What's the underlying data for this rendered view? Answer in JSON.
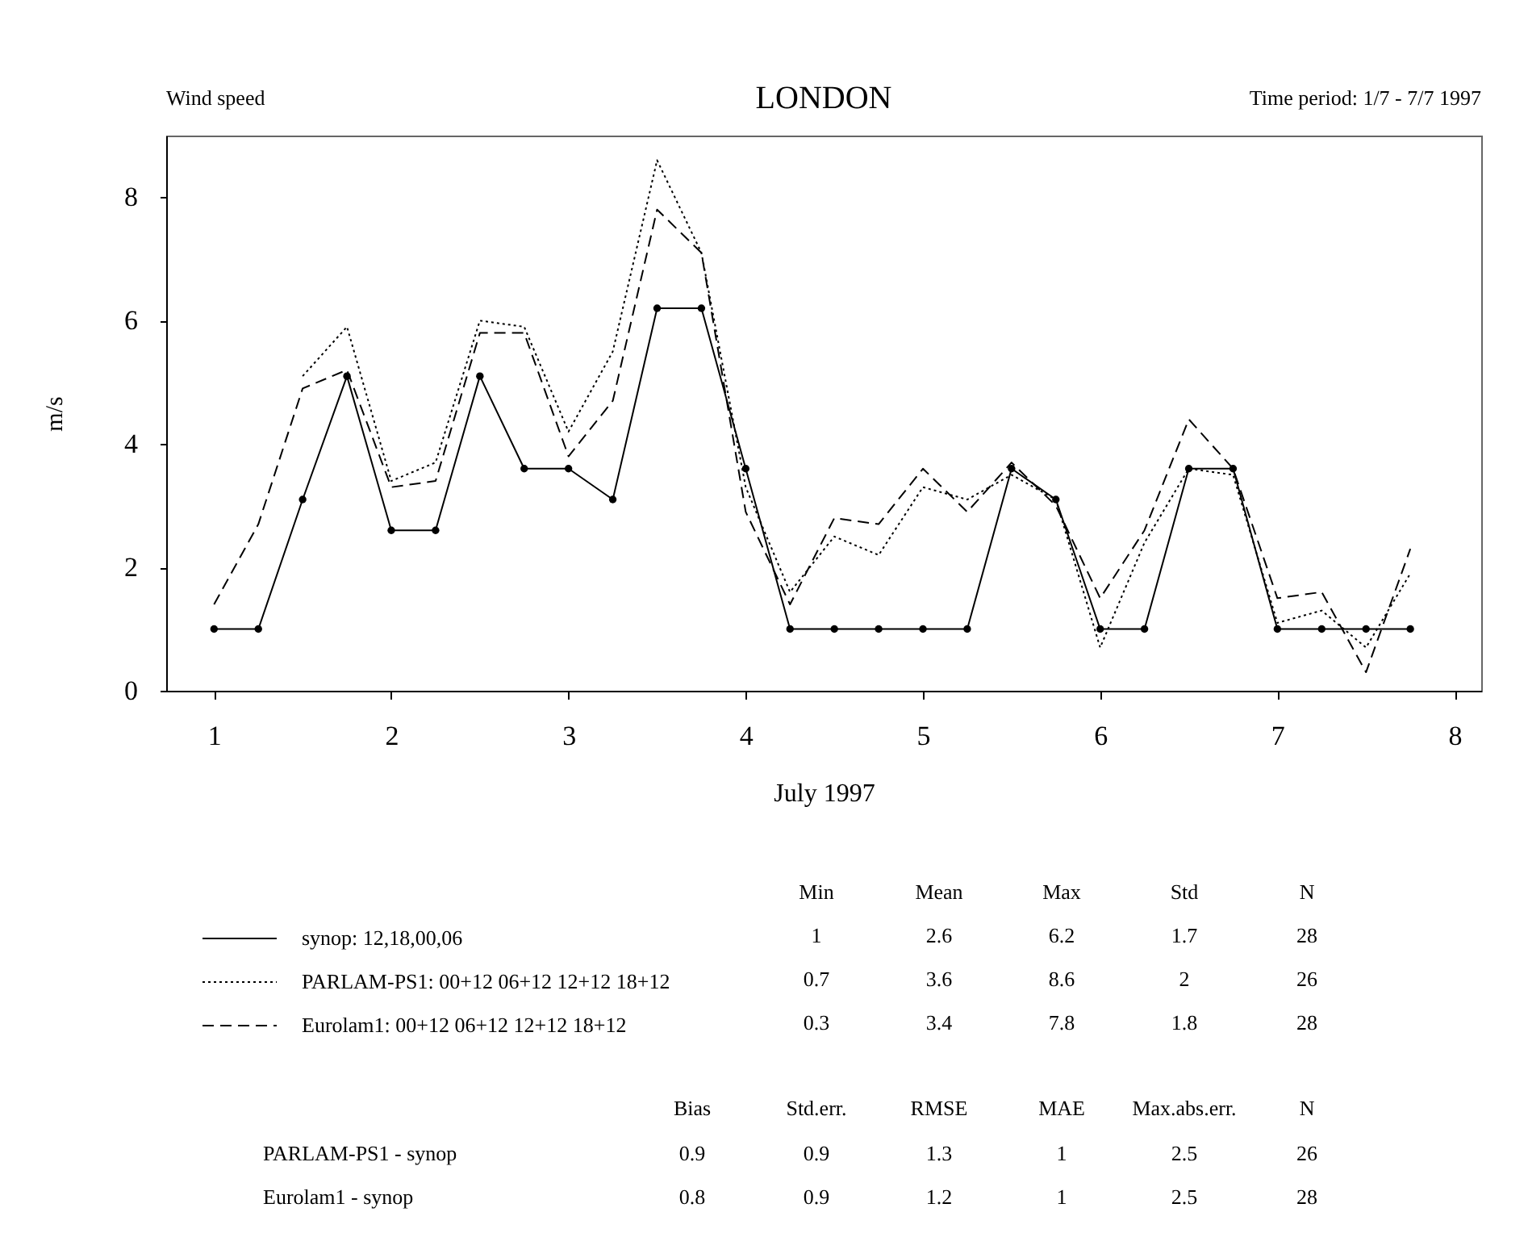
{
  "chart_data": {
    "type": "line",
    "title": "LONDON",
    "subtitle": "Wind speed",
    "xlabel": "July 1997",
    "ylabel": "m/s",
    "x": [
      1,
      1.25,
      1.5,
      1.75,
      2,
      2.25,
      2.5,
      2.75,
      3,
      3.25,
      3.5,
      3.75,
      4,
      4.25,
      4.5,
      4.75,
      5,
      5.25,
      5.5,
      5.75,
      6,
      6.25,
      6.5,
      6.75,
      7,
      7.25,
      7.5,
      7.75
    ],
    "series": [
      {
        "name": "synop:  12,18,00,06",
        "color": "#000000",
        "line_style": "solid",
        "marker": "circle",
        "values": [
          1.0,
          1.0,
          3.1,
          5.1,
          2.6,
          2.6,
          5.1,
          3.6,
          3.6,
          3.1,
          6.2,
          6.2,
          3.6,
          1.0,
          1.0,
          1.0,
          1.0,
          1.0,
          3.6,
          3.1,
          1.0,
          1.0,
          3.6,
          3.6,
          1.0,
          1.0,
          1.0,
          1.0
        ]
      },
      {
        "name": "PARLAM-PS1:  00+12 06+12 12+12 18+12",
        "color": "#000000",
        "line_style": "dotted",
        "values": [
          null,
          null,
          5.1,
          5.9,
          3.4,
          3.7,
          6.0,
          5.9,
          4.2,
          5.5,
          8.6,
          7.1,
          3.3,
          1.6,
          2.5,
          2.2,
          3.3,
          3.1,
          3.5,
          3.1,
          0.7,
          2.4,
          3.6,
          3.5,
          1.1,
          1.3,
          0.7,
          1.9
        ]
      },
      {
        "name": "Eurolam1:  00+12 06+12 12+12 18+12",
        "color": "#000000",
        "line_style": "dashed",
        "values": [
          1.4,
          2.7,
          4.9,
          5.2,
          3.3,
          3.4,
          5.8,
          5.8,
          3.8,
          4.7,
          7.8,
          7.1,
          2.9,
          1.4,
          2.8,
          2.7,
          3.6,
          2.9,
          3.7,
          3.0,
          1.5,
          2.6,
          4.4,
          3.6,
          1.5,
          1.6,
          0.3,
          2.3
        ]
      }
    ],
    "xlim": [
      0.73,
      8.15
    ],
    "xticks": [
      1,
      2,
      3,
      4,
      5,
      6,
      7,
      8
    ],
    "ylim": [
      0,
      9
    ],
    "yticks": [
      0,
      2,
      4,
      6,
      8
    ],
    "grid": false,
    "legend": "bottom left",
    "annotations": [
      "Time period: 1/7 - 7/7 1997",
      "Min",
      "Mean",
      "Max",
      "Std",
      "N",
      "1",
      "2.6",
      "6.2",
      "1.7",
      "28",
      "0.7",
      "3.6",
      "8.6",
      "2",
      "26",
      "0.3",
      "3.4",
      "7.8",
      "1.8",
      "28",
      "Bias",
      "Std.err.",
      "RMSE",
      "MAE",
      "Max.abs.err.",
      "N",
      "PARLAM-PS1 - synop",
      "0.9",
      "0.9",
      "1.3",
      "1",
      "2.5",
      "26",
      "Eurolam1 - synop",
      "0.8",
      "0.9",
      "1.2",
      "1",
      "2.5",
      "28"
    ]
  }
}
